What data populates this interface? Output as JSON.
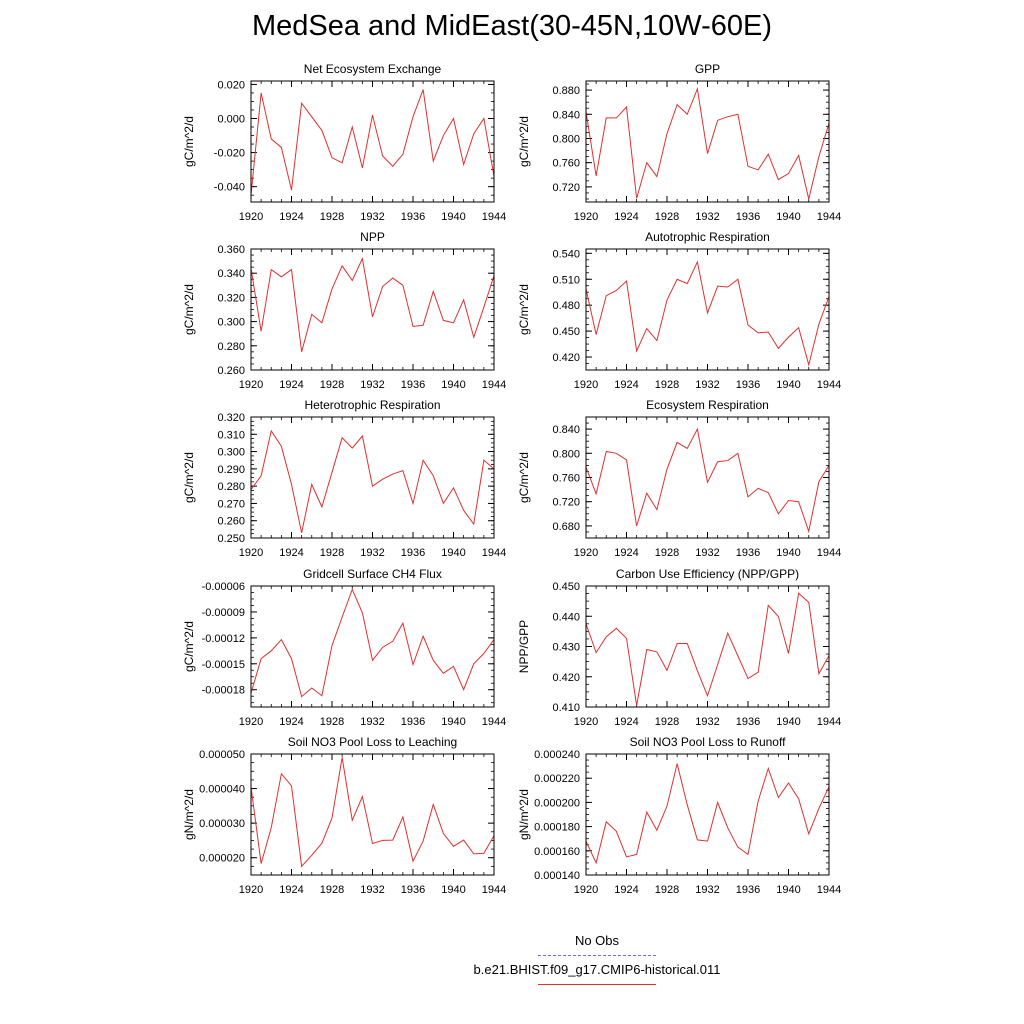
{
  "title": "MedSea and MidEast(30-45N,10W-60E)",
  "legend": {
    "obs_label": "No Obs",
    "obs_color": "#6b6bd6",
    "model_label": "b.e21.BHIST.f09_g17.CMIP6-historical.011",
    "model_color": "#e03030"
  },
  "chart_data": [
    {
      "type": "line",
      "title": "Net Ecosystem Exchange",
      "ylabel": "gC/m^2/d",
      "x": [
        1920,
        1921,
        1922,
        1923,
        1924,
        1925,
        1926,
        1927,
        1928,
        1929,
        1930,
        1931,
        1932,
        1933,
        1934,
        1935,
        1936,
        1937,
        1938,
        1939,
        1940,
        1941,
        1942,
        1943,
        1944
      ],
      "xlim": [
        1920,
        1944
      ],
      "xticks": [
        "1920",
        "1924",
        "1928",
        "1932",
        "1936",
        "1940",
        "1944"
      ],
      "ylim": [
        -0.049,
        0.022
      ],
      "yticks": [
        "-0.040",
        "-0.020",
        "0.000",
        "0.020"
      ],
      "series": [
        {
          "color": "#e03030",
          "values": [
            -0.045,
            0.015,
            -0.012,
            -0.017,
            -0.042,
            0.009,
            0.001,
            -0.007,
            -0.023,
            -0.026,
            -0.005,
            -0.029,
            0.002,
            -0.022,
            -0.028,
            -0.021,
            0.001,
            0.017,
            -0.025,
            -0.01,
            0.0,
            -0.027,
            -0.009,
            0.0,
            -0.034
          ]
        }
      ]
    },
    {
      "type": "line",
      "title": "GPP",
      "ylabel": "gC/m^2/d",
      "x": [
        1920,
        1921,
        1922,
        1923,
        1924,
        1925,
        1926,
        1927,
        1928,
        1929,
        1930,
        1931,
        1932,
        1933,
        1934,
        1935,
        1936,
        1937,
        1938,
        1939,
        1940,
        1941,
        1942,
        1943,
        1944
      ],
      "xlim": [
        1920,
        1944
      ],
      "xticks": [
        "1920",
        "1924",
        "1928",
        "1932",
        "1936",
        "1940",
        "1944"
      ],
      "ylim": [
        0.695,
        0.895
      ],
      "yticks": [
        "0.720",
        "0.760",
        "0.800",
        "0.840",
        "0.880"
      ],
      "series": [
        {
          "color": "#e03030",
          "values": [
            0.844,
            0.738,
            0.834,
            0.834,
            0.852,
            0.701,
            0.76,
            0.737,
            0.808,
            0.856,
            0.84,
            0.882,
            0.775,
            0.83,
            0.836,
            0.84,
            0.754,
            0.748,
            0.774,
            0.732,
            0.742,
            0.772,
            0.7,
            0.77,
            0.825
          ]
        }
      ]
    },
    {
      "type": "line",
      "title": "NPP",
      "ylabel": "gC/m^2/d",
      "x": [
        1920,
        1921,
        1922,
        1923,
        1924,
        1925,
        1926,
        1927,
        1928,
        1929,
        1930,
        1931,
        1932,
        1933,
        1934,
        1935,
        1936,
        1937,
        1938,
        1939,
        1940,
        1941,
        1942,
        1943,
        1944
      ],
      "xlim": [
        1920,
        1944
      ],
      "xticks": [
        "1920",
        "1924",
        "1928",
        "1932",
        "1936",
        "1940",
        "1944"
      ],
      "ylim": [
        0.26,
        0.36
      ],
      "yticks": [
        "0.260",
        "0.280",
        "0.300",
        "0.320",
        "0.340",
        "0.360"
      ],
      "series": [
        {
          "color": "#e03030",
          "values": [
            0.344,
            0.292,
            0.343,
            0.337,
            0.343,
            0.275,
            0.306,
            0.299,
            0.327,
            0.346,
            0.334,
            0.352,
            0.304,
            0.329,
            0.336,
            0.33,
            0.296,
            0.297,
            0.325,
            0.301,
            0.299,
            0.318,
            0.287,
            0.312,
            0.338
          ]
        }
      ]
    },
    {
      "type": "line",
      "title": "Autotrophic Respiration",
      "ylabel": "gC/m^2/d",
      "x": [
        1920,
        1921,
        1922,
        1923,
        1924,
        1925,
        1926,
        1927,
        1928,
        1929,
        1930,
        1931,
        1932,
        1933,
        1934,
        1935,
        1936,
        1937,
        1938,
        1939,
        1940,
        1941,
        1942,
        1943,
        1944
      ],
      "xlim": [
        1920,
        1944
      ],
      "xticks": [
        "1920",
        "1924",
        "1928",
        "1932",
        "1936",
        "1940",
        "1944"
      ],
      "ylim": [
        0.405,
        0.545
      ],
      "yticks": [
        "0.420",
        "0.450",
        "0.480",
        "0.510",
        "0.540"
      ],
      "series": [
        {
          "color": "#e03030",
          "values": [
            0.499,
            0.446,
            0.491,
            0.497,
            0.508,
            0.427,
            0.453,
            0.439,
            0.486,
            0.51,
            0.505,
            0.53,
            0.471,
            0.502,
            0.501,
            0.51,
            0.457,
            0.448,
            0.449,
            0.43,
            0.443,
            0.454,
            0.411,
            0.458,
            0.49
          ]
        }
      ]
    },
    {
      "type": "line",
      "title": "Heterotrophic Respiration",
      "ylabel": "gC/m^2/d",
      "x": [
        1920,
        1921,
        1922,
        1923,
        1924,
        1925,
        1926,
        1927,
        1928,
        1929,
        1930,
        1931,
        1932,
        1933,
        1934,
        1935,
        1936,
        1937,
        1938,
        1939,
        1940,
        1941,
        1942,
        1943,
        1944
      ],
      "xlim": [
        1920,
        1944
      ],
      "xticks": [
        "1920",
        "1924",
        "1928",
        "1932",
        "1936",
        "1940",
        "1944"
      ],
      "ylim": [
        0.25,
        0.32
      ],
      "yticks": [
        "0.250",
        "0.260",
        "0.270",
        "0.280",
        "0.290",
        "0.300",
        "0.310",
        "0.320"
      ],
      "series": [
        {
          "color": "#e03030",
          "values": [
            0.278,
            0.286,
            0.312,
            0.303,
            0.281,
            0.253,
            0.281,
            0.268,
            0.288,
            0.308,
            0.302,
            0.309,
            0.28,
            0.284,
            0.287,
            0.289,
            0.27,
            0.295,
            0.286,
            0.27,
            0.279,
            0.266,
            0.258,
            0.295,
            0.29
          ]
        }
      ]
    },
    {
      "type": "line",
      "title": "Ecosystem Respiration",
      "ylabel": "gC/m^2/d",
      "x": [
        1920,
        1921,
        1922,
        1923,
        1924,
        1925,
        1926,
        1927,
        1928,
        1929,
        1930,
        1931,
        1932,
        1933,
        1934,
        1935,
        1936,
        1937,
        1938,
        1939,
        1940,
        1941,
        1942,
        1943,
        1944
      ],
      "xlim": [
        1920,
        1944
      ],
      "xticks": [
        "1920",
        "1924",
        "1928",
        "1932",
        "1936",
        "1940",
        "1944"
      ],
      "ylim": [
        0.66,
        0.86
      ],
      "yticks": [
        "0.680",
        "0.720",
        "0.760",
        "0.800",
        "0.840"
      ],
      "series": [
        {
          "color": "#e03030",
          "values": [
            0.777,
            0.733,
            0.803,
            0.8,
            0.789,
            0.68,
            0.734,
            0.707,
            0.774,
            0.818,
            0.808,
            0.84,
            0.752,
            0.786,
            0.788,
            0.8,
            0.728,
            0.742,
            0.735,
            0.7,
            0.722,
            0.72,
            0.671,
            0.753,
            0.78
          ]
        }
      ]
    },
    {
      "type": "line",
      "title": "Gridcell Surface CH4 Flux",
      "ylabel": "gC/m^2/d",
      "x": [
        1920,
        1921,
        1922,
        1923,
        1924,
        1925,
        1926,
        1927,
        1928,
        1929,
        1930,
        1931,
        1932,
        1933,
        1934,
        1935,
        1936,
        1937,
        1938,
        1939,
        1940,
        1941,
        1942,
        1943,
        1944
      ],
      "xlim": [
        1920,
        1944
      ],
      "xticks": [
        "1920",
        "1924",
        "1928",
        "1932",
        "1936",
        "1940",
        "1944"
      ],
      "ylim": [
        -0.0002,
        -6e-05
      ],
      "yticks": [
        "-0.00018",
        "-0.00015",
        "-0.00012",
        "-0.00009",
        "-0.00006"
      ],
      "series": [
        {
          "color": "#e03030",
          "values": [
            -0.000184,
            -0.000144,
            -0.000135,
            -0.000122,
            -0.000144,
            -0.000188,
            -0.000178,
            -0.000187,
            -0.000129,
            -9.6e-05,
            -6.4e-05,
            -9.1e-05,
            -0.000146,
            -0.000131,
            -0.000124,
            -0.000103,
            -0.000151,
            -0.000118,
            -0.000146,
            -0.000161,
            -0.000153,
            -0.00018,
            -0.00015,
            -0.000138,
            -0.000122
          ]
        }
      ]
    },
    {
      "type": "line",
      "title": "Carbon Use Efficiency (NPP/GPP)",
      "ylabel": "NPP/GPP",
      "x": [
        1920,
        1921,
        1922,
        1923,
        1924,
        1925,
        1926,
        1927,
        1928,
        1929,
        1930,
        1931,
        1932,
        1933,
        1934,
        1935,
        1936,
        1937,
        1938,
        1939,
        1940,
        1941,
        1942,
        1943,
        1944
      ],
      "xlim": [
        1920,
        1944
      ],
      "xticks": [
        "1920",
        "1924",
        "1928",
        "1932",
        "1936",
        "1940",
        "1944"
      ],
      "ylim": [
        0.41,
        0.45
      ],
      "yticks": [
        "0.410",
        "0.420",
        "0.430",
        "0.440",
        "0.450"
      ],
      "series": [
        {
          "color": "#e03030",
          "values": [
            0.4375,
            0.428,
            0.4332,
            0.436,
            0.4327,
            0.4105,
            0.429,
            0.4282,
            0.4221,
            0.431,
            0.431,
            0.422,
            0.4137,
            0.424,
            0.4344,
            0.4269,
            0.4194,
            0.4215,
            0.4436,
            0.4399,
            0.4277,
            0.4476,
            0.4446,
            0.421,
            0.427
          ]
        }
      ]
    },
    {
      "type": "line",
      "title": "Soil NO3 Pool Loss to Leaching",
      "ylabel": "gN/m^2/d",
      "x": [
        1920,
        1921,
        1922,
        1923,
        1924,
        1925,
        1926,
        1927,
        1928,
        1929,
        1930,
        1931,
        1932,
        1933,
        1934,
        1935,
        1936,
        1937,
        1938,
        1939,
        1940,
        1941,
        1942,
        1943,
        1944
      ],
      "xlim": [
        1920,
        1944
      ],
      "xticks": [
        "1920",
        "1924",
        "1928",
        "1932",
        "1936",
        "1940",
        "1944"
      ],
      "ylim": [
        1.5e-05,
        5e-05
      ],
      "yticks": [
        "0.000020",
        "0.000030",
        "0.000040",
        "0.000050"
      ],
      "series": [
        {
          "color": "#e03030",
          "values": [
            4.05e-05,
            1.83e-05,
            2.87e-05,
            4.43e-05,
            4.08e-05,
            1.75e-05,
            2.07e-05,
            2.42e-05,
            3.15e-05,
            4.9e-05,
            3.08e-05,
            3.77e-05,
            2.41e-05,
            2.5e-05,
            2.51e-05,
            3.18e-05,
            1.9e-05,
            2.48e-05,
            3.54e-05,
            2.7e-05,
            2.33e-05,
            2.51e-05,
            2.11e-05,
            2.13e-05,
            2.64e-05
          ]
        }
      ]
    },
    {
      "type": "line",
      "title": "Soil NO3 Pool Loss to Runoff",
      "ylabel": "gN/m^2/d",
      "x": [
        1920,
        1921,
        1922,
        1923,
        1924,
        1925,
        1926,
        1927,
        1928,
        1929,
        1930,
        1931,
        1932,
        1933,
        1934,
        1935,
        1936,
        1937,
        1938,
        1939,
        1940,
        1941,
        1942,
        1943,
        1944
      ],
      "xlim": [
        1920,
        1944
      ],
      "xticks": [
        "1920",
        "1924",
        "1928",
        "1932",
        "1936",
        "1940",
        "1944"
      ],
      "ylim": [
        0.00014,
        0.00024
      ],
      "yticks": [
        "0.000140",
        "0.000160",
        "0.000180",
        "0.000200",
        "0.000220",
        "0.000240"
      ],
      "series": [
        {
          "color": "#e03030",
          "values": [
            0.000168,
            0.00015,
            0.000184,
            0.000176,
            0.000155,
            0.000157,
            0.000192,
            0.000177,
            0.000197,
            0.000232,
            0.000198,
            0.000169,
            0.000168,
            0.0002,
            0.000179,
            0.000163,
            0.000157,
            0.000201,
            0.000228,
            0.000204,
            0.000216,
            0.000203,
            0.000174,
            0.000195,
            0.000213
          ]
        }
      ]
    }
  ]
}
